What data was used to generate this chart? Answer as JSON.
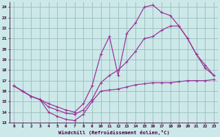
{
  "xlabel": "Windchill (Refroidissement éolien,°C)",
  "bg_color": "#cce8e8",
  "grid_color": "#99bbbb",
  "line_color": "#993399",
  "xlim": [
    -0.5,
    23.5
  ],
  "ylim": [
    13,
    24.5
  ],
  "yticks": [
    13,
    14,
    15,
    16,
    17,
    18,
    19,
    20,
    21,
    22,
    23,
    24
  ],
  "xticks": [
    0,
    1,
    2,
    3,
    4,
    5,
    6,
    7,
    8,
    9,
    10,
    11,
    12,
    13,
    14,
    15,
    16,
    17,
    18,
    19,
    20,
    21,
    22,
    23
  ],
  "line1_x": [
    0,
    1,
    2,
    3,
    4,
    5,
    6,
    7,
    8,
    9,
    10,
    11,
    12,
    13,
    14,
    15,
    16,
    17,
    18,
    19,
    20,
    21,
    22,
    23
  ],
  "line1_y": [
    16.5,
    16.0,
    15.5,
    15.2,
    14.0,
    13.6,
    13.3,
    13.2,
    13.8,
    15.0,
    16.0,
    16.1,
    16.2,
    16.4,
    16.6,
    16.7,
    16.8,
    16.8,
    16.8,
    16.9,
    17.0,
    17.0,
    17.0,
    17.1
  ],
  "line2_x": [
    0,
    1,
    2,
    3,
    4,
    5,
    6,
    7,
    8,
    9,
    10,
    11,
    12,
    13,
    14,
    15,
    16,
    17,
    18,
    19,
    20,
    21,
    22,
    23
  ],
  "line2_y": [
    16.5,
    16.0,
    15.5,
    15.2,
    14.5,
    14.2,
    13.9,
    13.8,
    14.2,
    15.2,
    16.8,
    17.5,
    18.0,
    18.8,
    19.8,
    21.0,
    21.2,
    21.8,
    22.2,
    22.2,
    21.0,
    19.5,
    18.2,
    17.5
  ],
  "line3_x": [
    0,
    1,
    2,
    3,
    4,
    5,
    6,
    7,
    8,
    9,
    10,
    11,
    12,
    13,
    14,
    15,
    16,
    17,
    18,
    19,
    20,
    21,
    22,
    23
  ],
  "line3_y": [
    16.5,
    16.0,
    15.5,
    15.2,
    14.8,
    14.5,
    14.2,
    14.0,
    14.8,
    16.5,
    19.5,
    21.2,
    17.5,
    21.5,
    22.5,
    24.0,
    24.2,
    23.5,
    23.2,
    22.2,
    21.0,
    19.5,
    18.5,
    17.5
  ]
}
